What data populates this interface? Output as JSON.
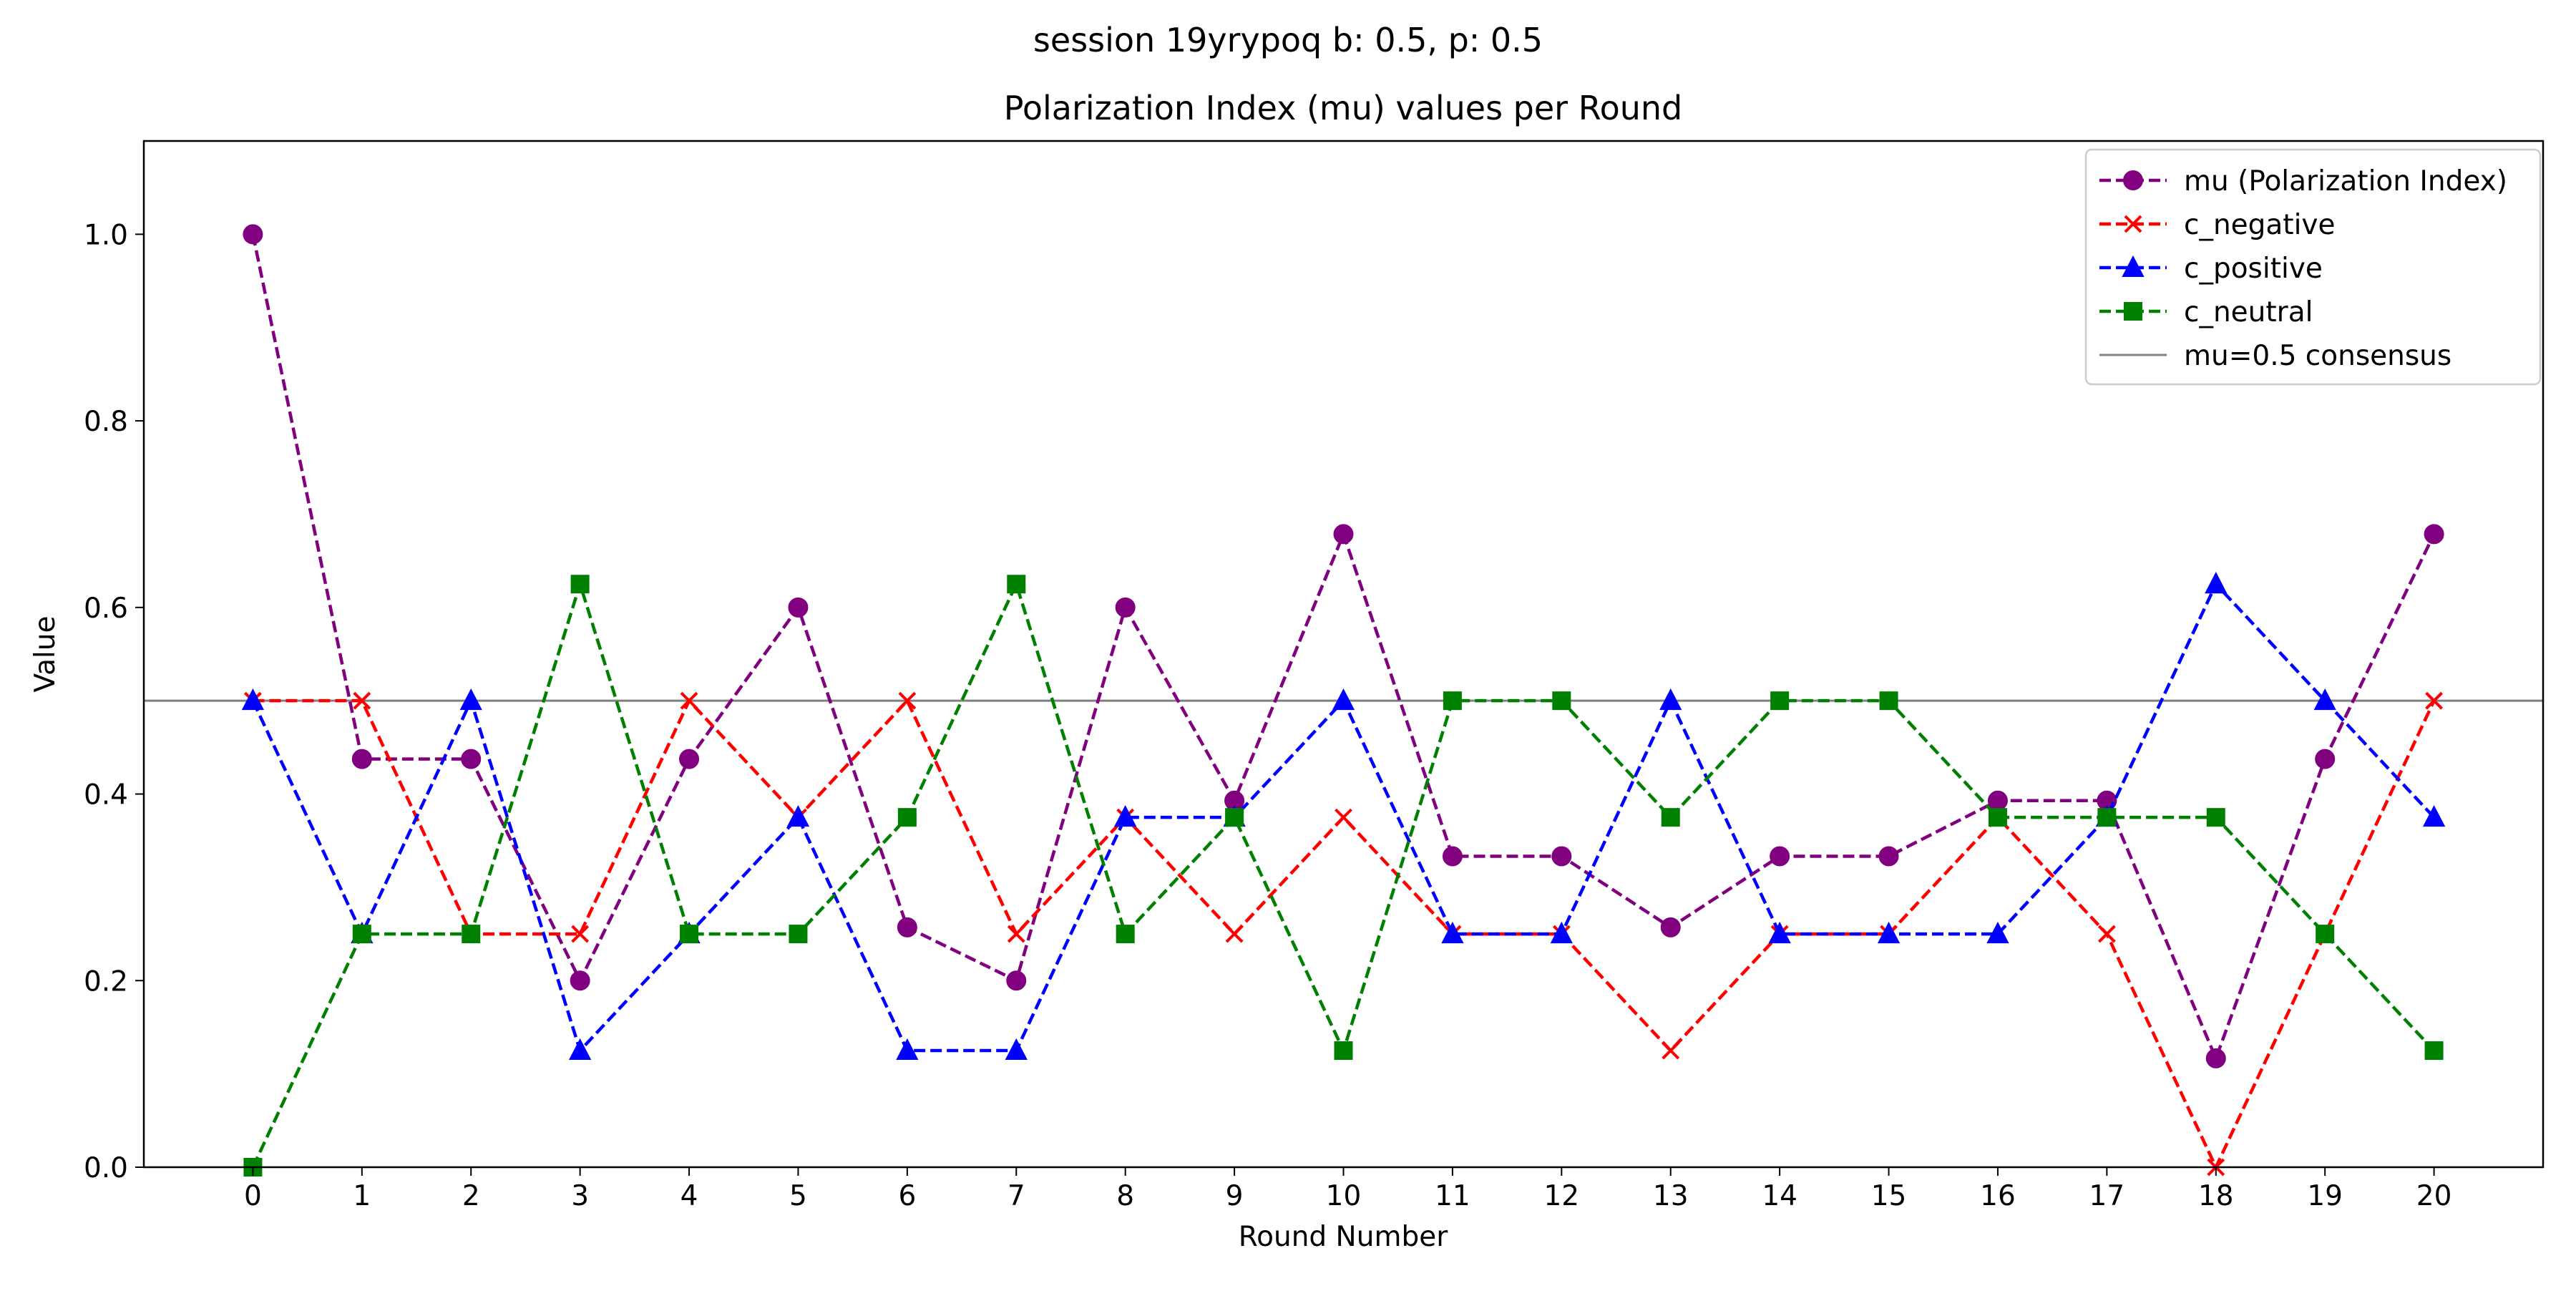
{
  "figure": {
    "suptitle": "session 19yrypoq b: 0.5, p: 0.5"
  },
  "chart_data": {
    "type": "line",
    "title": "Polarization Index (mu) values per Round",
    "xlabel": "Round Number",
    "ylabel": "Value",
    "xlim": [
      -1,
      21
    ],
    "ylim": [
      0.0,
      1.1
    ],
    "xticks": [
      0,
      1,
      2,
      3,
      4,
      5,
      6,
      7,
      8,
      9,
      10,
      11,
      12,
      13,
      14,
      15,
      16,
      17,
      18,
      19,
      20
    ],
    "yticks": [
      0.0,
      0.2,
      0.4,
      0.6,
      0.8,
      1.0
    ],
    "grid": false,
    "legend_position": "top-right",
    "x": [
      0,
      1,
      2,
      3,
      4,
      5,
      6,
      7,
      8,
      9,
      10,
      11,
      12,
      13,
      14,
      15,
      16,
      17,
      18,
      19,
      20
    ],
    "series": [
      {
        "name": "mu (Polarization Index)",
        "color": "#800080",
        "marker": "circle",
        "values": [
          1.0,
          0.4375,
          0.4375,
          0.2,
          0.4375,
          0.6,
          0.2571,
          0.2,
          0.6,
          0.3929,
          0.6786,
          0.3333,
          0.3333,
          0.2571,
          0.3333,
          0.3333,
          0.3929,
          0.3929,
          0.1167,
          0.4375,
          0.6786
        ]
      },
      {
        "name": "c_negative",
        "color": "#ff0000",
        "marker": "x",
        "values": [
          0.5,
          0.5,
          0.25,
          0.25,
          0.5,
          0.375,
          0.5,
          0.25,
          0.375,
          0.25,
          0.375,
          0.25,
          0.25,
          0.125,
          0.25,
          0.25,
          0.375,
          0.25,
          0.0,
          0.25,
          0.5
        ]
      },
      {
        "name": "c_positive",
        "color": "#0000ff",
        "marker": "triangle",
        "values": [
          0.5,
          0.25,
          0.5,
          0.125,
          0.25,
          0.375,
          0.125,
          0.125,
          0.375,
          0.375,
          0.5,
          0.25,
          0.25,
          0.5,
          0.25,
          0.25,
          0.25,
          0.375,
          0.625,
          0.5,
          0.375
        ]
      },
      {
        "name": "c_neutral",
        "color": "#008000",
        "marker": "square",
        "values": [
          0.0,
          0.25,
          0.25,
          0.625,
          0.25,
          0.25,
          0.375,
          0.625,
          0.25,
          0.375,
          0.125,
          0.5,
          0.5,
          0.375,
          0.5,
          0.5,
          0.375,
          0.375,
          0.375,
          0.25,
          0.125
        ]
      }
    ],
    "reference_line": {
      "name": "mu=0.5 consensus",
      "y": 0.5,
      "color": "#808080"
    }
  }
}
